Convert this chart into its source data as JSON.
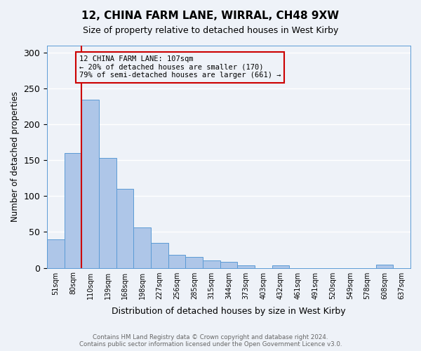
{
  "title1": "12, CHINA FARM LANE, WIRRAL, CH48 9XW",
  "title2": "Size of property relative to detached houses in West Kirby",
  "xlabel": "Distribution of detached houses by size in West Kirby",
  "ylabel": "Number of detached properties",
  "bin_labels": [
    "51sqm",
    "80sqm",
    "110sqm",
    "139sqm",
    "168sqm",
    "198sqm",
    "227sqm",
    "256sqm",
    "285sqm",
    "315sqm",
    "344sqm",
    "373sqm",
    "403sqm",
    "432sqm",
    "461sqm",
    "491sqm",
    "520sqm",
    "549sqm",
    "578sqm",
    "608sqm",
    "637sqm"
  ],
  "bar_heights": [
    40,
    160,
    235,
    153,
    110,
    56,
    35,
    18,
    15,
    10,
    8,
    3,
    0,
    3,
    0,
    0,
    0,
    0,
    0,
    4,
    0
  ],
  "bar_color": "#aec6e8",
  "bar_edge_color": "#5b9bd5",
  "vline_color": "#cc0000",
  "annotation_text": "12 CHINA FARM LANE: 107sqm\n← 20% of detached houses are smaller (170)\n79% of semi-detached houses are larger (661) →",
  "annotation_box_edge_color": "#cc0000",
  "ylim": [
    0,
    310
  ],
  "yticks": [
    0,
    50,
    100,
    150,
    200,
    250,
    300
  ],
  "footer_text": "Contains HM Land Registry data © Crown copyright and database right 2024.\nContains public sector information licensed under the Open Government Licence v3.0.",
  "bg_color": "#eef2f8",
  "plot_bg_color": "#eef2f8",
  "grid_color": "#ffffff"
}
